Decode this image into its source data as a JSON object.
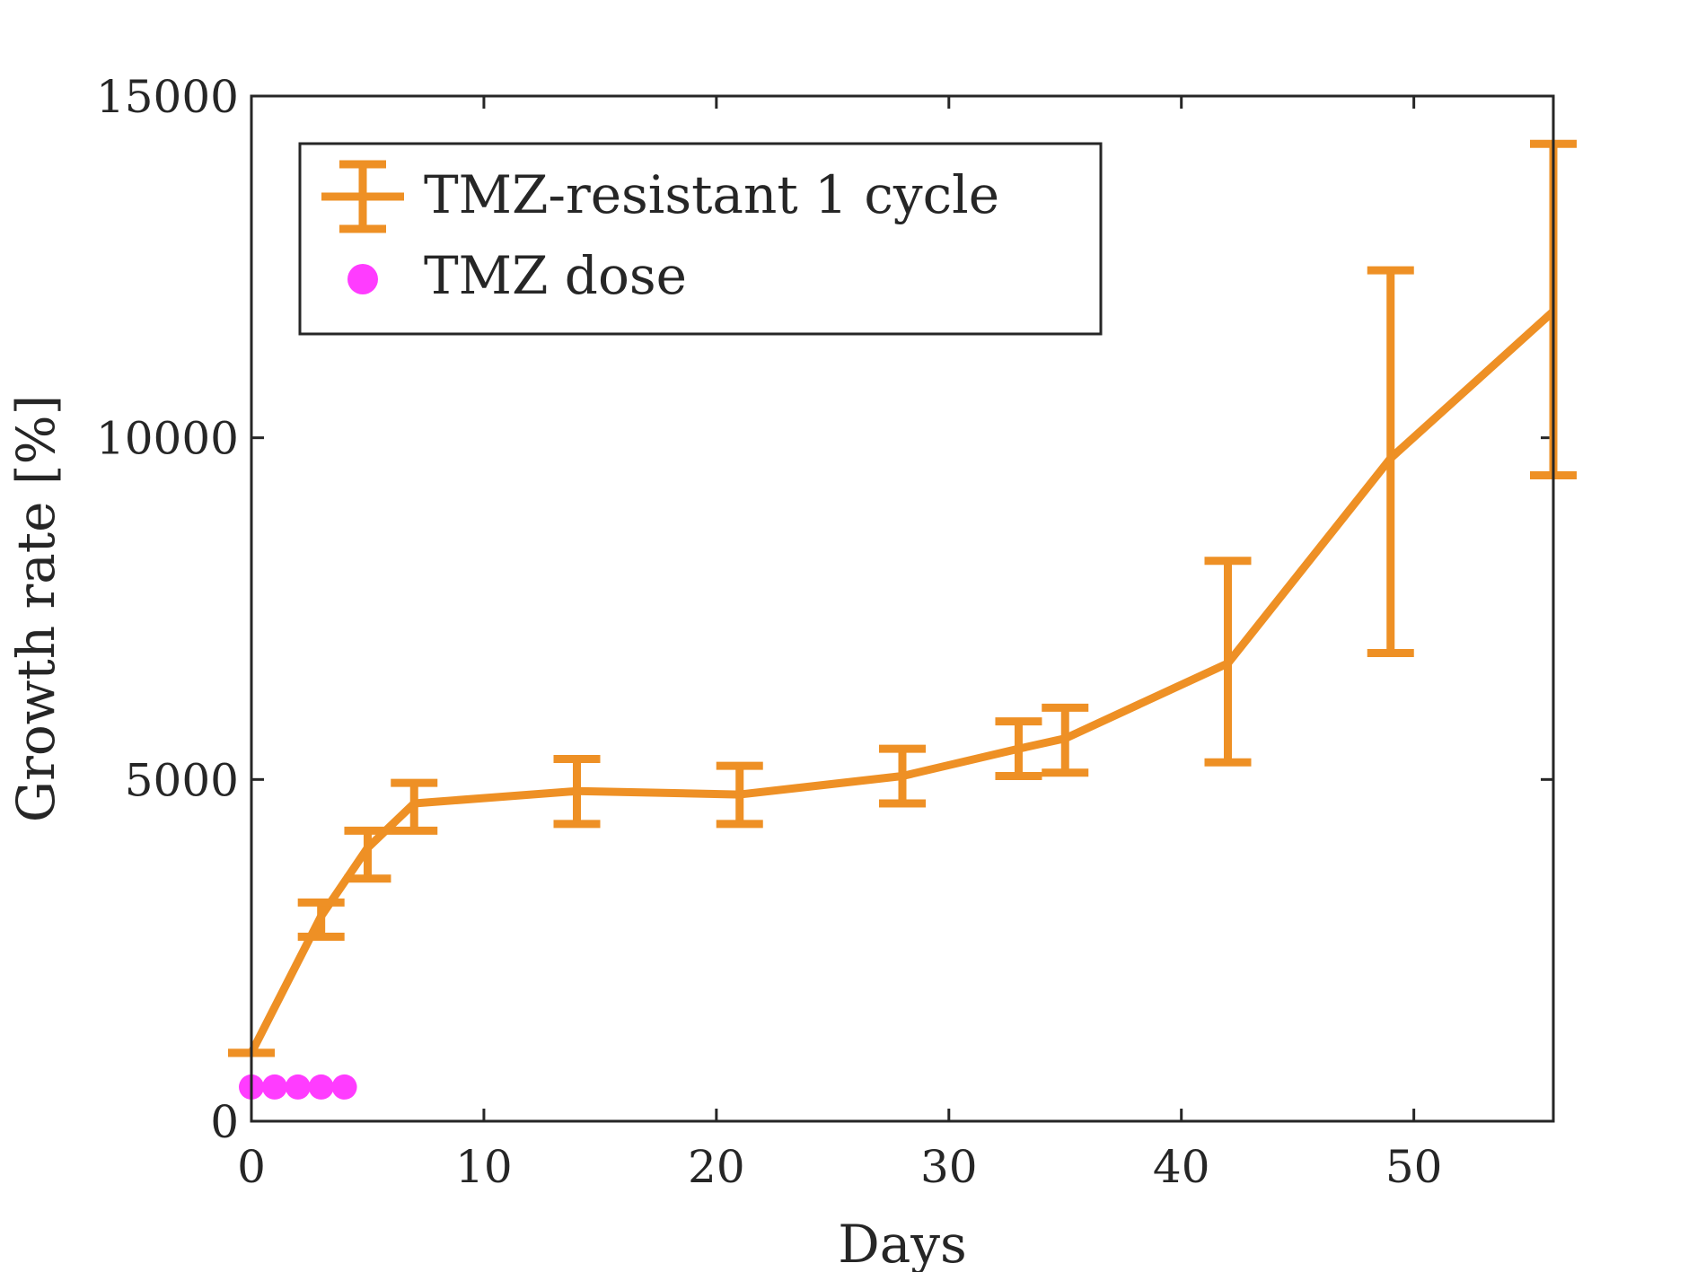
{
  "chart_data": {
    "type": "line",
    "xlabel": "Days",
    "ylabel": "Growth rate [%]",
    "xlim": [
      0,
      56
    ],
    "ylim": [
      0,
      15000
    ],
    "xticks": [
      0,
      10,
      20,
      30,
      40,
      50
    ],
    "yticks": [
      0,
      5000,
      10000,
      15000
    ],
    "grid": false,
    "legend_position": "top-left",
    "series": [
      {
        "name": "TMZ-resistant 1 cycle",
        "kind": "line-errorbar",
        "color": "#ee9025",
        "x": [
          0,
          3,
          5,
          7,
          14,
          21,
          28,
          33,
          35,
          42,
          49,
          56
        ],
        "y": [
          1000,
          3000,
          4000,
          4650,
          4830,
          4780,
          5050,
          5450,
          5600,
          6700,
          9700,
          11850
        ],
        "err_low": [
          1000,
          2700,
          3550,
          4250,
          4350,
          4350,
          4650,
          5050,
          5100,
          5250,
          6850,
          9450
        ],
        "err_high": [
          1000,
          3200,
          4250,
          4950,
          5300,
          5200,
          5450,
          5850,
          6050,
          8200,
          12450,
          14300
        ]
      },
      {
        "name": "TMZ dose",
        "kind": "scatter",
        "color": "#ff3cff",
        "x": [
          0,
          1,
          2,
          3,
          4
        ],
        "y": [
          500,
          500,
          500,
          500,
          500
        ]
      }
    ]
  }
}
